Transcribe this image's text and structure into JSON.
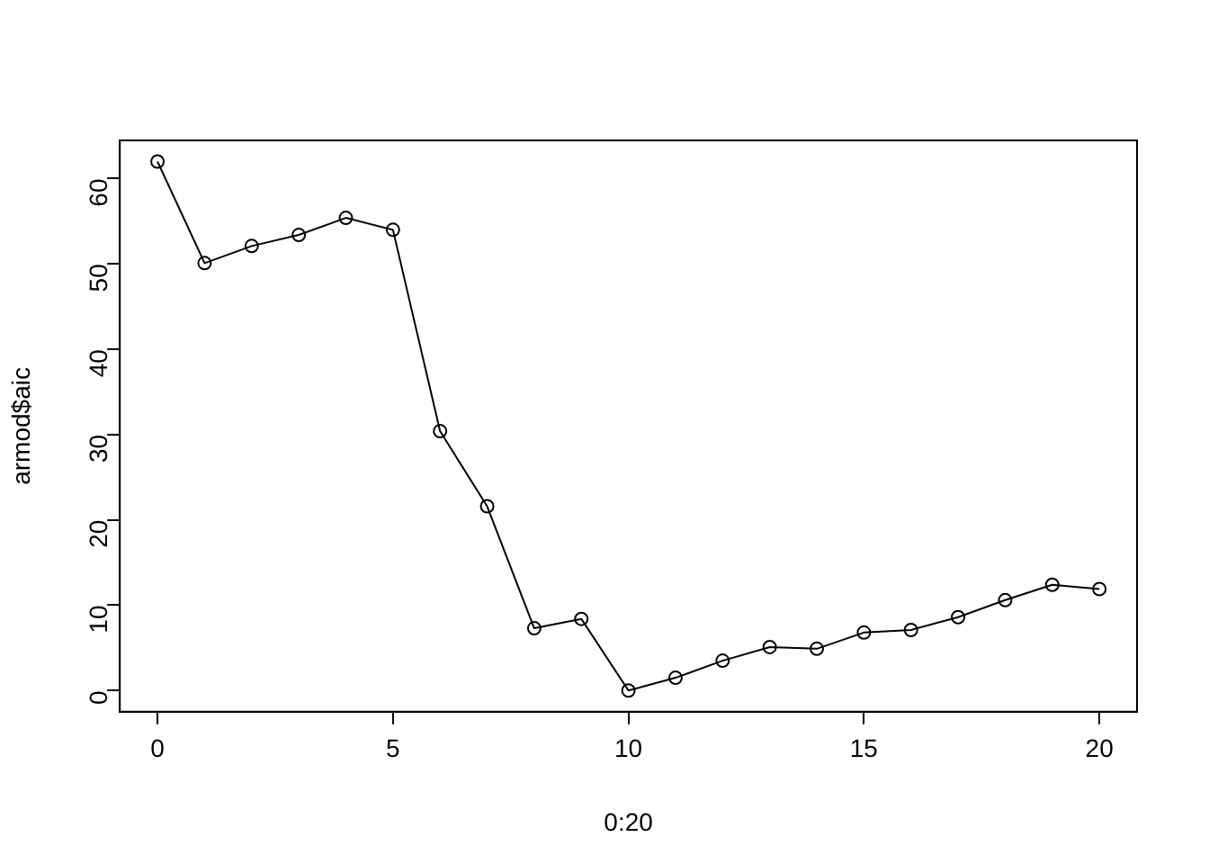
{
  "chart_data": {
    "type": "line",
    "xlabel": "0:20",
    "ylabel": "armod$aic",
    "x": [
      0,
      1,
      2,
      3,
      4,
      5,
      6,
      7,
      8,
      9,
      10,
      11,
      12,
      13,
      14,
      15,
      16,
      17,
      18,
      19,
      20
    ],
    "series": [
      {
        "color": "#000000",
        "values": [
          62.0,
          50.1,
          52.1,
          53.4,
          55.4,
          54.0,
          30.4,
          21.6,
          7.3,
          8.4,
          0,
          1.5,
          3.5,
          5.1,
          4.9,
          6.8,
          7.1,
          8.6,
          10.6,
          12.4,
          11.9
        ]
      }
    ],
    "xlim": [
      -0.8,
      20.8
    ],
    "xticks": [
      0,
      5,
      10,
      15,
      20
    ],
    "ylim": [
      -2.48,
      64.48
    ],
    "yticks": [
      0,
      10,
      20,
      30,
      40,
      50,
      60
    ],
    "marker": "circle",
    "line_style": "solid",
    "grid": false,
    "legend": false
  }
}
